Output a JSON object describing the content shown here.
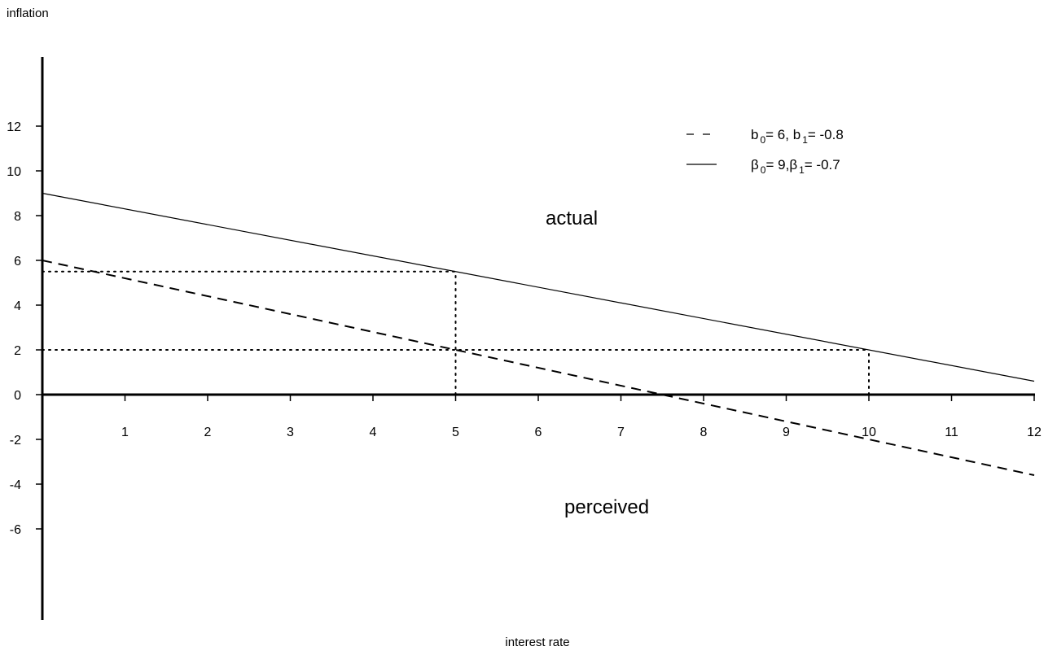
{
  "chart_data": {
    "type": "line",
    "ylabel": "inflation",
    "xlabel": "interest rate",
    "x_ticks": [
      1,
      2,
      3,
      4,
      5,
      6,
      7,
      8,
      9,
      10,
      11,
      12
    ],
    "y_ticks": [
      -6,
      -4,
      -2,
      0,
      2,
      4,
      6,
      8,
      10,
      12
    ],
    "xlim": [
      0,
      12
    ],
    "ylim": [
      -10,
      15
    ],
    "grid": false,
    "legend_position": "top-right",
    "series": [
      {
        "name": "β0 = 9, β1 = -0.7",
        "style": "solid",
        "intercept": 9,
        "slope": -0.7,
        "x": [
          0,
          12
        ],
        "y": [
          9,
          0.6
        ]
      },
      {
        "name": "b0 = 6, b1 = -0.8",
        "style": "dashed",
        "intercept": 6,
        "slope": -0.8,
        "x": [
          0,
          12
        ],
        "y": [
          6,
          -3.6
        ]
      }
    ],
    "legend": [
      {
        "style": "dashed",
        "symbol": "b",
        "sub0": "0",
        "value0": "= 6, ",
        "sub1": "1",
        "value1": "= -0.8"
      },
      {
        "style": "solid",
        "symbol": "β",
        "sub0": "0",
        "value0": "= 9,",
        "sub1": "1",
        "value1": "= -0.7"
      }
    ],
    "reference_lines": [
      {
        "orientation": "horizontal",
        "y": 5.5,
        "x_from": 0,
        "x_to": 5
      },
      {
        "orientation": "vertical",
        "x": 5,
        "y_from": 0,
        "y_to": 5.5
      },
      {
        "orientation": "horizontal",
        "y": 2,
        "x_from": 0,
        "x_to": 10
      },
      {
        "orientation": "vertical",
        "x": 10,
        "y_from": 0,
        "y_to": 2
      }
    ],
    "annotations": [
      {
        "text": "actual",
        "x": 4.6,
        "y": 7.6
      },
      {
        "text": "perceived",
        "x": 4.6,
        "y": -5.3
      }
    ],
    "colors": {
      "line": "#000000",
      "background": "#ffffff"
    }
  }
}
